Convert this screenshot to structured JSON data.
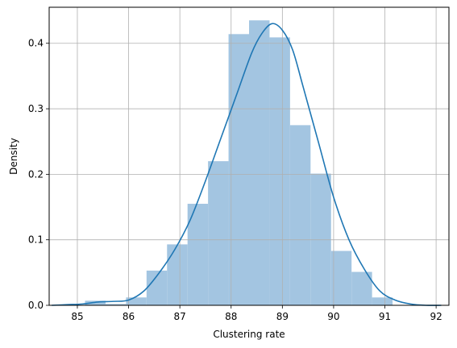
{
  "chart_data": {
    "type": "bar",
    "title": "",
    "xlabel": "Clustering rate",
    "ylabel": "Density",
    "xlim": [
      84.45,
      92.25
    ],
    "ylim": [
      0.0,
      0.455
    ],
    "grid": true,
    "xticks": [
      85,
      86,
      87,
      88,
      89,
      90,
      91,
      92
    ],
    "yticks": [
      0.0,
      0.1,
      0.2,
      0.3,
      0.4
    ],
    "ytick_labels": [
      "0.0",
      "0.1",
      "0.2",
      "0.3",
      "0.4"
    ],
    "histogram": {
      "bin_edges": [
        85.15,
        85.55,
        85.95,
        86.35,
        86.75,
        87.15,
        87.55,
        87.95,
        88.35,
        88.75,
        89.15,
        89.55,
        89.95,
        90.35,
        90.75,
        91.15
      ],
      "values": [
        0.007,
        0.002,
        0.012,
        0.053,
        0.093,
        0.155,
        0.22,
        0.414,
        0.435,
        0.409,
        0.275,
        0.201,
        0.083,
        0.051,
        0.012
      ],
      "color": "#a3c5e1"
    },
    "kde": {
      "x": [
        84.5,
        84.8,
        85.1,
        85.4,
        85.7,
        86.0,
        86.3,
        86.6,
        86.9,
        87.2,
        87.5,
        87.8,
        88.1,
        88.4,
        88.6,
        88.8,
        89.0,
        89.2,
        89.4,
        89.7,
        90.0,
        90.3,
        90.6,
        90.9,
        91.2,
        91.5,
        91.8,
        92.1
      ],
      "y": [
        0.0,
        0.001,
        0.002,
        0.005,
        0.006,
        0.008,
        0.022,
        0.05,
        0.085,
        0.13,
        0.19,
        0.255,
        0.32,
        0.385,
        0.415,
        0.43,
        0.42,
        0.39,
        0.335,
        0.25,
        0.165,
        0.1,
        0.055,
        0.022,
        0.008,
        0.002,
        0.0,
        0.0
      ],
      "color": "#1f77b4"
    }
  }
}
